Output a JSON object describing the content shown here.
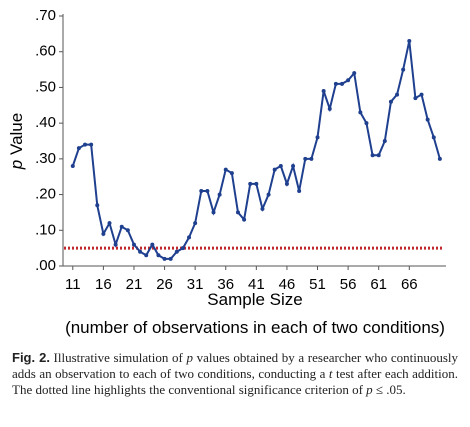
{
  "chart_data": {
    "type": "line",
    "x": [
      11,
      12,
      13,
      14,
      15,
      16,
      17,
      18,
      19,
      20,
      21,
      22,
      23,
      24,
      25,
      26,
      27,
      28,
      29,
      30,
      31,
      32,
      33,
      34,
      35,
      36,
      37,
      38,
      39,
      40,
      41,
      42,
      43,
      44,
      45,
      46,
      47,
      48,
      49,
      50,
      51,
      52,
      53,
      54,
      55,
      56,
      57,
      58,
      59,
      60,
      61,
      62,
      63,
      64,
      65,
      66,
      67,
      68,
      69,
      70,
      71
    ],
    "series": [
      {
        "color": "#1f3f8f",
        "values": [
          0.28,
          0.33,
          0.34,
          0.34,
          0.17,
          0.09,
          0.12,
          0.06,
          0.11,
          0.1,
          0.06,
          0.04,
          0.03,
          0.06,
          0.03,
          0.02,
          0.02,
          0.04,
          0.05,
          0.08,
          0.12,
          0.21,
          0.21,
          0.15,
          0.2,
          0.27,
          0.26,
          0.15,
          0.13,
          0.23,
          0.23,
          0.16,
          0.2,
          0.27,
          0.28,
          0.23,
          0.28,
          0.21,
          0.3,
          0.3,
          0.36,
          0.49,
          0.44,
          0.51,
          0.51,
          0.52,
          0.54,
          0.43,
          0.4,
          0.31,
          0.31,
          0.35,
          0.46,
          0.48,
          0.55,
          0.63,
          0.47,
          0.48,
          0.41,
          0.36,
          0.3
        ]
      }
    ],
    "threshold": {
      "value": 0.05,
      "color": "#c0282d"
    },
    "xlim": [
      9.4,
      72
    ],
    "xticks": [
      11,
      16,
      21,
      26,
      31,
      36,
      41,
      46,
      51,
      56,
      61,
      66
    ],
    "ylim": [
      0,
      0.7
    ],
    "yticks": [
      {
        "value": 0,
        "label": ".00"
      },
      {
        "value": 0.1,
        "label": ".10"
      },
      {
        "value": 0.2,
        "label": ".20"
      },
      {
        "value": 0.3,
        "label": ".30"
      },
      {
        "value": 0.4,
        "label": ".40"
      },
      {
        "value": 0.5,
        "label": ".50"
      },
      {
        "value": 0.6,
        "label": ".60"
      },
      {
        "value": 0.7,
        "label": ".70"
      }
    ],
    "x_label": "Sample Size",
    "x_sublabel": "(number of observations in each of two conditions)",
    "y_label": [
      "p",
      " Value"
    ],
    "caption_label": "Fig. 2.",
    "caption_parts": [
      " Illustrative simulation of ",
      "p",
      " values obtained by a researcher who continuously adds an observation to each of two conditions, conducting a ",
      "t",
      " test after each addition. The dotted line highlights the conventional significance criterion of ",
      "p",
      " ≤ .05."
    ]
  }
}
